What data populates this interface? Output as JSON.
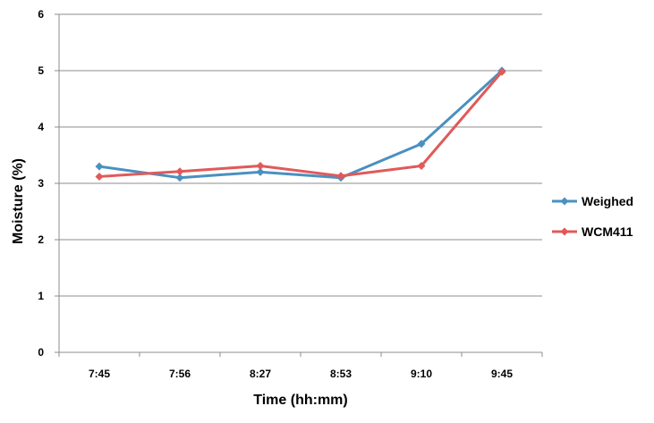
{
  "chart_data": {
    "type": "line",
    "xlabel": "Time (hh:mm)",
    "ylabel": "Moisture (%)",
    "categories": [
      "7:45",
      "7:56",
      "8:27",
      "8:53",
      "9:10",
      "9:45"
    ],
    "ylim": [
      0,
      6
    ],
    "yticks": [
      "0",
      "1",
      "2",
      "3",
      "4",
      "5",
      "6"
    ],
    "grid": true,
    "legend_position": "right",
    "series": [
      {
        "name": "Weighed",
        "color": "#4a90c0",
        "marker": "diamond",
        "values": [
          3.3,
          3.1,
          3.2,
          3.1,
          3.7,
          5.0
        ]
      },
      {
        "name": "WCM411",
        "color": "#e05a5a",
        "marker": "diamond",
        "values": [
          3.12,
          3.21,
          3.31,
          3.13,
          3.31,
          4.98
        ]
      }
    ]
  }
}
